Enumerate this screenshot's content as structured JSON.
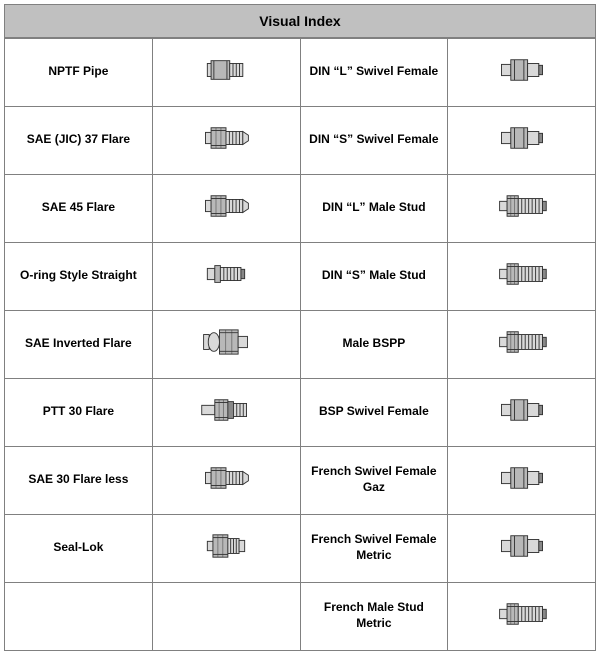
{
  "title": "Visual Index",
  "columns": {
    "label_width_pct": 25,
    "image_width_pct": 25
  },
  "rows": [
    {
      "left_label": "NPTF Pipe",
      "left_icon": "plug",
      "right_label": "DIN “L” Swivel Female",
      "right_icon": "sleeve"
    },
    {
      "left_label": "SAE (JIC) 37 Flare",
      "left_icon": "flare-hex",
      "right_label": "DIN “S” Swivel Female",
      "right_icon": "sleeve"
    },
    {
      "left_label": "SAE 45 Flare",
      "left_icon": "flare-hex",
      "right_label": "DIN “L” Male Stud",
      "right_icon": "stud"
    },
    {
      "left_label": "O-ring Style Straight",
      "left_icon": "oring",
      "right_label": "DIN “S” Male Stud",
      "right_icon": "stud"
    },
    {
      "left_label": "SAE Inverted Flare",
      "left_icon": "inverted",
      "right_label": "Male BSPP",
      "right_icon": "stud"
    },
    {
      "left_label": "PTT 30 Flare",
      "left_icon": "ptt",
      "right_label": "BSP Swivel Female",
      "right_icon": "sleeve"
    },
    {
      "left_label": "SAE 30 Flare less",
      "left_icon": "flare-hex",
      "right_label": "French Swivel Female Gaz",
      "right_icon": "sleeve"
    },
    {
      "left_label": "Seal-Lok",
      "left_icon": "seallok",
      "right_label": "French Swivel Female Metric",
      "right_icon": "sleeve"
    },
    {
      "left_label": "",
      "left_icon": "",
      "right_label": "French Male Stud Metric",
      "right_icon": "stud"
    }
  ],
  "icon_colors": {
    "stroke": "#333333",
    "fill_light": "#d9d9d9",
    "fill_mid": "#b8b8b8",
    "fill_dark": "#888888"
  }
}
